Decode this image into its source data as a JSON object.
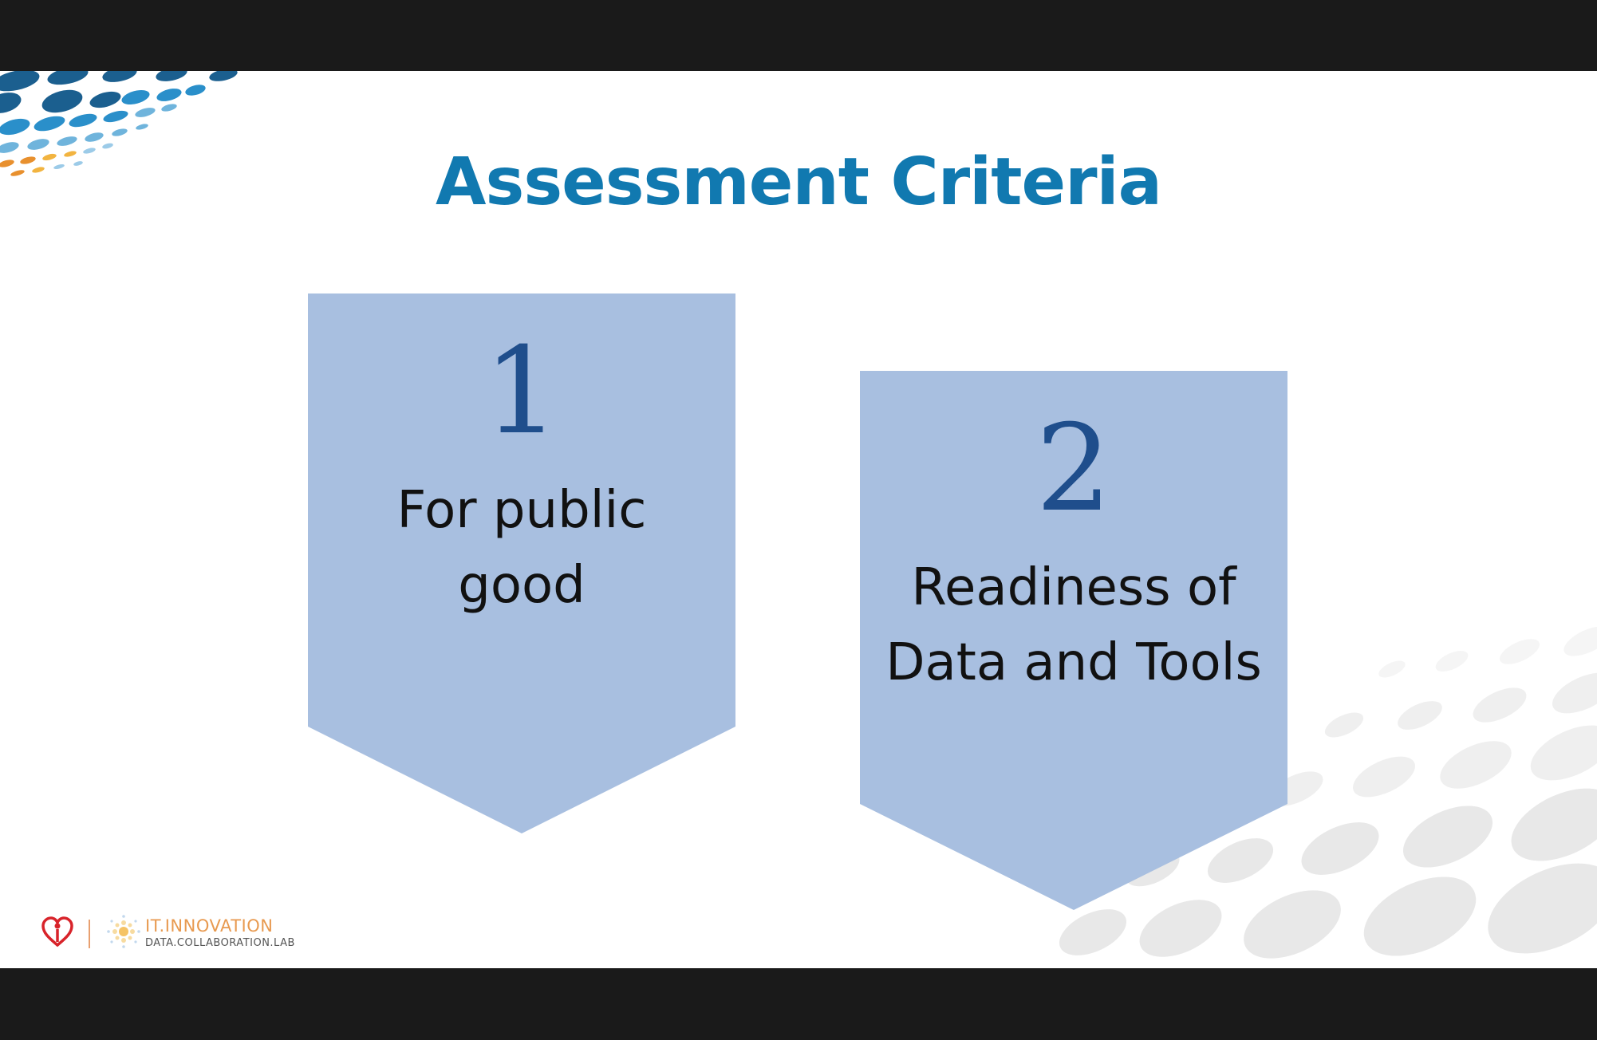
{
  "slide": {
    "title": "Assessment Criteria",
    "criteria": [
      {
        "number": "1",
        "line1": "For public",
        "line2": "good"
      },
      {
        "number": "2",
        "line1": "Readiness of",
        "line2": "Data and Tools"
      }
    ]
  },
  "footer": {
    "brand_line1": "IT.INNOVATION",
    "brand_line2": "DATA.COLLABORATION.LAB",
    "icons": [
      "heart-logo-icon",
      "it-innovation-logo-icon"
    ]
  },
  "colors": {
    "title": "#1179b0",
    "chevron_fill": "#a8bfe0",
    "number": "#1f4e8c",
    "text": "#111111",
    "brand_orange": "#e89a50"
  }
}
